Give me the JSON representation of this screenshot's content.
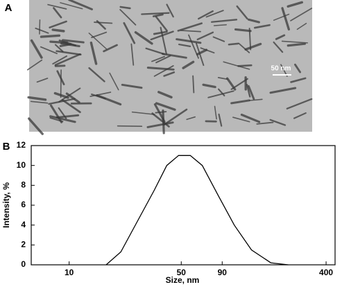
{
  "panel_a": {
    "label": "A",
    "scale_bar": "50 nm"
  },
  "chart_data": {
    "type": "line",
    "panel_label": "B",
    "xlabel": "Size, nm",
    "ylabel": "Intensity, %",
    "x": [
      17,
      21,
      26.9,
      33.9,
      40.6,
      48.1,
      56.9,
      67.6,
      84.9,
      107,
      137,
      181,
      232
    ],
    "values": [
      0,
      1.3,
      4.5,
      7.5,
      10,
      11,
      11,
      10,
      7,
      4,
      1.5,
      0.2,
      0
    ],
    "color": "#000000",
    "xscale": "log",
    "xlim": [
      5.8,
      455
    ],
    "xticks": [
      10,
      50,
      90,
      400
    ],
    "ylim": [
      0,
      12
    ],
    "yticks": [
      0,
      2,
      4,
      6,
      8,
      10,
      12
    ]
  }
}
